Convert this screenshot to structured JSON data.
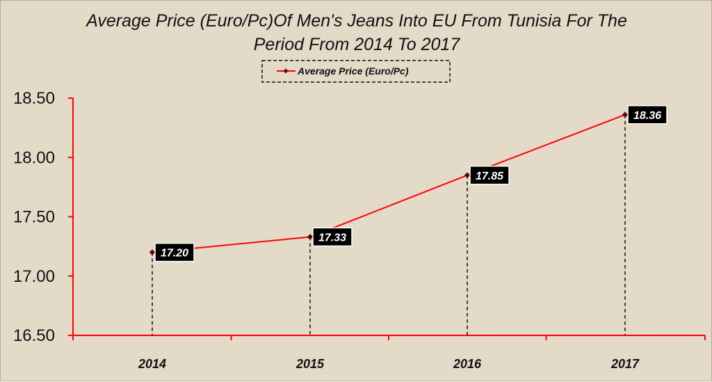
{
  "chart_data": {
    "type": "line",
    "title": [
      "Average Price (Euro/Pc)Of Men's Jeans Into EU From Tunisia For The",
      "Period From 2014 To 2017"
    ],
    "xlabel": "",
    "ylabel": "",
    "categories": [
      "2014",
      "2015",
      "2016",
      "2017"
    ],
    "series": [
      {
        "name": "Average Price (Euro/Pc)",
        "values": [
          17.2,
          17.33,
          17.85,
          18.36
        ],
        "labels": [
          "17.20",
          "17.33",
          "17.85",
          "18.36"
        ]
      }
    ],
    "ylim": [
      16.5,
      18.5
    ],
    "yticks": [
      16.5,
      17.0,
      17.5,
      18.0,
      18.5
    ],
    "ytick_labels": [
      "16.50",
      "17.00",
      "17.50",
      "18.00",
      "18.50"
    ],
    "legend_position": "top-center",
    "grid": false,
    "drop_lines": true
  },
  "colors": {
    "line": "#ff0000",
    "axis": "#ff0000",
    "marker": "#5a0a0a",
    "label_bg": "#000000",
    "label_text": "#ffffff",
    "background": "#e3dac8"
  }
}
